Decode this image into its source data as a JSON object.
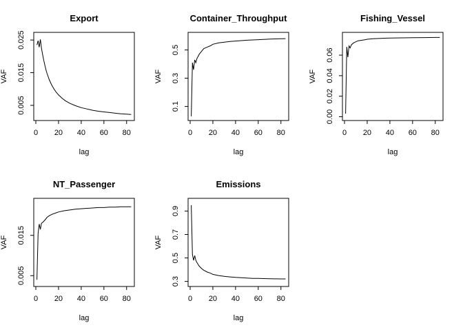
{
  "chart_data": [
    {
      "type": "line",
      "title": "Export",
      "xlabel": "lag",
      "ylabel": "VAF",
      "xlim": [
        0,
        85
      ],
      "ylim": [
        0.0012,
        0.0265
      ],
      "xticks": [
        0,
        20,
        40,
        60,
        80
      ],
      "yticks": [
        0.005,
        0.015,
        0.025
      ],
      "ytick_labels": [
        "0.005",
        "0.015",
        "0.025"
      ],
      "series": [
        {
          "x": [
            1,
            2,
            3,
            4,
            5,
            6,
            7,
            8,
            9,
            10,
            12,
            14,
            16,
            18,
            20,
            23,
            26,
            30,
            35,
            40,
            45,
            50,
            55,
            60,
            65,
            70,
            75,
            80,
            84
          ],
          "values": [
            0.0235,
            0.0248,
            0.0228,
            0.0252,
            0.0225,
            0.0205,
            0.0188,
            0.0172,
            0.0158,
            0.0146,
            0.0127,
            0.0112,
            0.01,
            0.009,
            0.0082,
            0.0072,
            0.0064,
            0.0056,
            0.0049,
            0.0043,
            0.0039,
            0.0035,
            0.0032,
            0.003,
            0.0028,
            0.0026,
            0.0024,
            0.0023,
            0.0022
          ]
        }
      ]
    },
    {
      "type": "line",
      "title": "Container_Throughput",
      "xlabel": "lag",
      "ylabel": "VAF",
      "xlim": [
        0,
        85
      ],
      "ylim": [
        0.02,
        0.605
      ],
      "xticks": [
        0,
        20,
        40,
        60,
        80
      ],
      "yticks": [
        0.1,
        0.3,
        0.5
      ],
      "ytick_labels": [
        "0.1",
        "0.3",
        "0.5"
      ],
      "series": [
        {
          "x": [
            1,
            2,
            3,
            4,
            5,
            6,
            8,
            10,
            12,
            15,
            18,
            20,
            25,
            30,
            35,
            40,
            45,
            50,
            55,
            60,
            65,
            70,
            75,
            80,
            84
          ],
          "values": [
            0.03,
            0.41,
            0.36,
            0.43,
            0.41,
            0.44,
            0.47,
            0.49,
            0.51,
            0.52,
            0.53,
            0.54,
            0.55,
            0.555,
            0.56,
            0.563,
            0.566,
            0.569,
            0.571,
            0.573,
            0.575,
            0.577,
            0.578,
            0.579,
            0.58
          ]
        }
      ]
    },
    {
      "type": "line",
      "title": "Fishing_Vessel",
      "xlabel": "lag",
      "ylabel": "VAF",
      "xlim": [
        0,
        85
      ],
      "ylim": [
        -0.001,
        0.0795
      ],
      "xticks": [
        0,
        20,
        40,
        60,
        80
      ],
      "yticks": [
        0.0,
        0.02,
        0.04,
        0.06
      ],
      "ytick_labels": [
        "0.00",
        "0.02",
        "0.04",
        "0.06"
      ],
      "series": [
        {
          "x": [
            1,
            2,
            3,
            4,
            5,
            6,
            8,
            10,
            12,
            15,
            18,
            20,
            25,
            30,
            35,
            40,
            50,
            60,
            70,
            80,
            84
          ],
          "values": [
            0.003,
            0.068,
            0.058,
            0.069,
            0.067,
            0.07,
            0.072,
            0.073,
            0.074,
            0.0745,
            0.075,
            0.0755,
            0.076,
            0.0762,
            0.0765,
            0.0767,
            0.0768,
            0.077,
            0.0771,
            0.0772,
            0.0772
          ]
        }
      ]
    },
    {
      "type": "line",
      "title": "NT_Passenger",
      "xlabel": "lag",
      "ylabel": "VAF",
      "xlim": [
        0,
        85
      ],
      "ylim": [
        0.003,
        0.0235
      ],
      "xticks": [
        0,
        20,
        40,
        60,
        80
      ],
      "yticks": [
        0.005,
        0.015
      ],
      "ytick_labels": [
        "0.005",
        "0.015"
      ],
      "series": [
        {
          "x": [
            1,
            2,
            3,
            4,
            5,
            6,
            8,
            10,
            12,
            15,
            18,
            20,
            25,
            30,
            35,
            40,
            45,
            50,
            55,
            60,
            65,
            70,
            75,
            80,
            84
          ],
          "values": [
            0.004,
            0.0155,
            0.0178,
            0.0165,
            0.018,
            0.0182,
            0.0188,
            0.0195,
            0.0199,
            0.0203,
            0.0206,
            0.0208,
            0.0211,
            0.0213,
            0.0215,
            0.0216,
            0.0217,
            0.0218,
            0.0219,
            0.0219,
            0.022,
            0.022,
            0.0221,
            0.0221,
            0.0221
          ]
        }
      ]
    },
    {
      "type": "line",
      "title": "Emissions",
      "xlabel": "lag",
      "ylabel": "VAF",
      "xlim": [
        0,
        85
      ],
      "ylim": [
        0.28,
        0.985
      ],
      "xticks": [
        0,
        20,
        40,
        60,
        80
      ],
      "yticks": [
        0.3,
        0.5,
        0.7,
        0.9
      ],
      "ytick_labels": [
        "0.3",
        "0.5",
        "0.7",
        "0.9"
      ],
      "series": [
        {
          "x": [
            1,
            2,
            3,
            4,
            5,
            6,
            8,
            10,
            12,
            15,
            18,
            20,
            25,
            30,
            35,
            40,
            45,
            50,
            55,
            60,
            65,
            70,
            75,
            80,
            84
          ],
          "values": [
            0.95,
            0.53,
            0.48,
            0.52,
            0.48,
            0.46,
            0.43,
            0.41,
            0.395,
            0.38,
            0.37,
            0.36,
            0.35,
            0.343,
            0.338,
            0.334,
            0.331,
            0.328,
            0.326,
            0.325,
            0.324,
            0.323,
            0.322,
            0.321,
            0.321
          ]
        }
      ]
    }
  ]
}
